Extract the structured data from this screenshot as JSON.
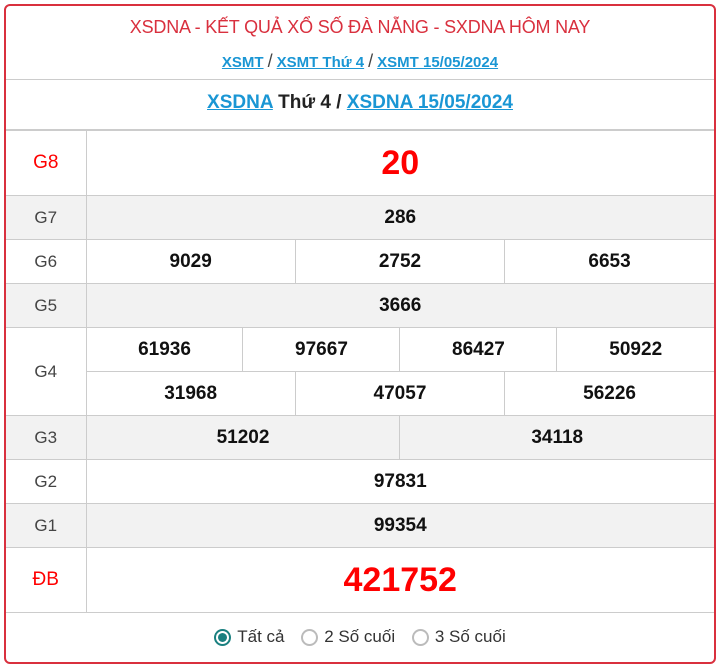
{
  "header": {
    "title": "XSDNA - KẾT QUẢ XỔ SỐ ĐÀ NẴNG - SXDNA HÔM NAY",
    "breadcrumbs": [
      "XSMT",
      "XSMT Thứ 4",
      "XSMT 15/05/2024"
    ],
    "separator": "/"
  },
  "result_title": {
    "link1": "XSDNA",
    "middle": " Thứ 4 / ",
    "link2": "XSDNA 15/05/2024"
  },
  "prizes": {
    "g8": {
      "label": "G8",
      "values": [
        "20"
      ]
    },
    "g7": {
      "label": "G7",
      "values": [
        "286"
      ]
    },
    "g6": {
      "label": "G6",
      "values": [
        "9029",
        "2752",
        "6653"
      ]
    },
    "g5": {
      "label": "G5",
      "values": [
        "3666"
      ]
    },
    "g4": {
      "label": "G4",
      "values": [
        "61936",
        "97667",
        "86427",
        "50922",
        "31968",
        "47057",
        "56226"
      ]
    },
    "g3": {
      "label": "G3",
      "values": [
        "51202",
        "34118"
      ]
    },
    "g2": {
      "label": "G2",
      "values": [
        "97831"
      ]
    },
    "g1": {
      "label": "G1",
      "values": [
        "99354"
      ]
    },
    "db": {
      "label": "ĐB",
      "values": [
        "421752"
      ]
    }
  },
  "filter": {
    "options": [
      "Tất cả",
      "2 Số cuối",
      "3 Số cuối"
    ],
    "selected": "Tất cả"
  },
  "colors": {
    "accent": "#d9303e",
    "link": "#1a96d4",
    "prize_red": "#ff0000",
    "radio": "#1a8080"
  }
}
